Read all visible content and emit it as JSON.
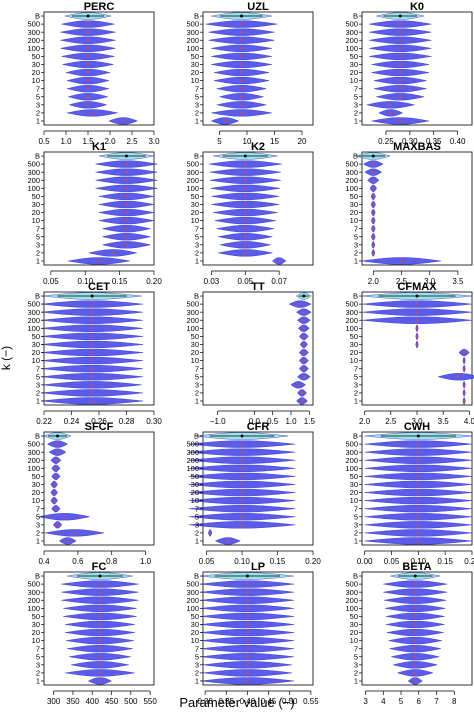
{
  "figure": {
    "ylabel": "k (−)",
    "xlabel": "Parameter value (−)",
    "k_labels": [
      "B",
      "500",
      "300",
      "200",
      "100",
      "50",
      "30",
      "20",
      "10",
      "7",
      "5",
      "3",
      "2",
      "1"
    ]
  },
  "colors": {
    "violin": "#4a4ae8",
    "bootstrap": "#8fe0e6",
    "median": "#e8413c",
    "axis": "#000000"
  },
  "chart_data": [
    {
      "type": "violin",
      "title": "PERC",
      "xlim": [
        0.5,
        3.0
      ],
      "ticks": [
        0.5,
        1.0,
        1.5,
        2.0,
        2.5,
        3.0
      ],
      "tick_labels": [
        "0.5",
        "1.0",
        "1.5",
        "2.0",
        "2.5",
        "3.0"
      ],
      "centers": [
        1.5,
        1.5,
        1.5,
        1.5,
        1.5,
        1.5,
        1.5,
        1.5,
        1.5,
        1.5,
        1.5,
        1.5,
        1.6,
        2.3
      ],
      "widths": [
        1.05,
        1.2,
        1.25,
        1.25,
        1.25,
        1.2,
        1.15,
        1.0,
        0.95,
        0.95,
        0.9,
        0.85,
        1.15,
        0.65
      ]
    },
    {
      "type": "violin",
      "title": "UZL",
      "xlim": [
        2,
        22
      ],
      "ticks": [
        5,
        10,
        15,
        20
      ],
      "tick_labels": [
        "5",
        "10",
        "15",
        "20"
      ],
      "centers": [
        9,
        9,
        9,
        9,
        9,
        9,
        9,
        9,
        9,
        9,
        9,
        9,
        9,
        6
      ],
      "widths": [
        11,
        13,
        12,
        12,
        11,
        11,
        11,
        10,
        10,
        9,
        8,
        9,
        11,
        5
      ]
    },
    {
      "type": "violin",
      "title": "K0",
      "xlim": [
        0.2,
        0.43
      ],
      "ticks": [
        0.25,
        0.3,
        0.35,
        0.4
      ],
      "tick_labels": [
        "0.25",
        "0.30",
        "0.35",
        "0.40"
      ],
      "centers": [
        0.28,
        0.28,
        0.28,
        0.28,
        0.28,
        0.28,
        0.28,
        0.28,
        0.28,
        0.28,
        0.28,
        0.26,
        0.26,
        0.28
      ],
      "widths": [
        0.1,
        0.13,
        0.13,
        0.13,
        0.13,
        0.13,
        0.12,
        0.12,
        0.11,
        0.11,
        0.1,
        0.1,
        0.05,
        0.12
      ]
    },
    {
      "type": "violin",
      "title": "K1",
      "xlim": [
        0.04,
        0.2
      ],
      "ticks": [
        0.05,
        0.1,
        0.15,
        0.2
      ],
      "tick_labels": [
        "0.05",
        "0.10",
        "0.15",
        "0.20"
      ],
      "centers": [
        0.16,
        0.16,
        0.16,
        0.16,
        0.16,
        0.16,
        0.16,
        0.16,
        0.16,
        0.16,
        0.16,
        0.16,
        0.14,
        0.12
      ],
      "widths": [
        0.08,
        0.09,
        0.09,
        0.09,
        0.09,
        0.08,
        0.08,
        0.08,
        0.08,
        0.07,
        0.07,
        0.07,
        0.07,
        0.09
      ]
    },
    {
      "type": "violin",
      "title": "K2",
      "xlim": [
        0.025,
        0.09
      ],
      "ticks": [
        0.03,
        0.05,
        0.07
      ],
      "tick_labels": [
        "0.03",
        "0.05",
        "0.07"
      ],
      "centers": [
        0.05,
        0.05,
        0.05,
        0.05,
        0.05,
        0.05,
        0.05,
        0.05,
        0.05,
        0.05,
        0.05,
        0.05,
        0.05,
        0.07
      ],
      "widths": [
        0.038,
        0.043,
        0.042,
        0.042,
        0.041,
        0.04,
        0.04,
        0.038,
        0.036,
        0.034,
        0.032,
        0.03,
        0.032,
        0.008
      ]
    },
    {
      "type": "violin",
      "title": "MAXBAS",
      "xlim": [
        1.8,
        3.75
      ],
      "ticks": [
        2.0,
        2.5,
        3.0,
        3.5
      ],
      "tick_labels": [
        "2.0",
        "2.5",
        "3.0",
        "3.5"
      ],
      "centers": [
        2.0,
        2.0,
        2.0,
        2.0,
        2.0,
        2.0,
        2.0,
        2.0,
        2.0,
        2.0,
        2.0,
        2.0,
        2.0,
        2.5
      ],
      "widths": [
        0.6,
        0.35,
        0.3,
        0.2,
        0.12,
        0.08,
        0.08,
        0.07,
        0.07,
        0.07,
        0.07,
        0.06,
        0.06,
        1.4
      ]
    },
    {
      "type": "violin",
      "title": "CET",
      "xlim": [
        0.22,
        0.3
      ],
      "ticks": [
        0.22,
        0.24,
        0.26,
        0.28,
        0.3
      ],
      "tick_labels": [
        "0.22",
        "0.24",
        "0.26",
        "0.28",
        "0.30"
      ],
      "centers": [
        0.255,
        0.255,
        0.255,
        0.255,
        0.255,
        0.255,
        0.255,
        0.255,
        0.255,
        0.255,
        0.255,
        0.255,
        0.255,
        0.255
      ],
      "widths": [
        0.072,
        0.074,
        0.074,
        0.074,
        0.074,
        0.074,
        0.074,
        0.074,
        0.074,
        0.074,
        0.074,
        0.072,
        0.074,
        0.074
      ]
    },
    {
      "type": "violin",
      "title": "TT",
      "xlim": [
        -1.4,
        1.6
      ],
      "ticks": [
        -1.0,
        0.0,
        0.5,
        1.0,
        1.5
      ],
      "tick_labels": [
        "−1.0",
        "0.0",
        "0.5",
        "1.0",
        "1.5"
      ],
      "centers": [
        1.35,
        1.25,
        1.35,
        1.35,
        1.35,
        1.35,
        1.35,
        1.35,
        1.35,
        1.35,
        1.35,
        1.2,
        1.3,
        1.3
      ],
      "widths": [
        0.4,
        0.6,
        0.4,
        0.35,
        0.3,
        0.25,
        0.2,
        0.25,
        0.25,
        0.25,
        0.35,
        0.4,
        0.25,
        0.3
      ]
    },
    {
      "type": "violin",
      "title": "CFMAX",
      "xlim": [
        1.95,
        4.05
      ],
      "ticks": [
        2.0,
        2.5,
        3.0,
        3.5,
        4.0
      ],
      "tick_labels": [
        "2.0",
        "2.5",
        "3.0",
        "3.5",
        "4.0"
      ],
      "centers": [
        3.0,
        3.0,
        3.0,
        3.0,
        3.0,
        3.0,
        3.0,
        3.9,
        3.9,
        3.9,
        3.8,
        3.9,
        3.9,
        3.9
      ],
      "widths": [
        2.1,
        2.1,
        2.1,
        2.1,
        0.05,
        0.05,
        0.05,
        0.2,
        0.05,
        0.05,
        0.8,
        0.05,
        0.05,
        0.05
      ]
    },
    {
      "type": "violin",
      "title": "SFCF",
      "xlim": [
        0.4,
        1.05
      ],
      "ticks": [
        0.4,
        0.6,
        0.8,
        1.0
      ],
      "tick_labels": [
        "0.4",
        "0.6",
        "0.8",
        "1.0"
      ],
      "centers": [
        0.48,
        0.48,
        0.48,
        0.47,
        0.47,
        0.47,
        0.46,
        0.46,
        0.46,
        0.47,
        0.52,
        0.48,
        0.58,
        0.54
      ],
      "widths": [
        0.16,
        0.12,
        0.1,
        0.06,
        0.05,
        0.05,
        0.04,
        0.04,
        0.04,
        0.05,
        0.3,
        0.05,
        0.35,
        0.1
      ]
    },
    {
      "type": "violin",
      "title": "CFR",
      "xlim": [
        0.045,
        0.2
      ],
      "ticks": [
        0.05,
        0.1,
        0.15,
        0.2
      ],
      "tick_labels": [
        "0.05",
        "0.10",
        "0.15",
        "0.20"
      ],
      "centers": [
        0.1,
        0.1,
        0.1,
        0.1,
        0.1,
        0.1,
        0.1,
        0.1,
        0.1,
        0.1,
        0.1,
        0.1,
        0.055,
        0.08
      ],
      "widths": [
        0.13,
        0.15,
        0.15,
        0.15,
        0.15,
        0.15,
        0.15,
        0.15,
        0.15,
        0.15,
        0.15,
        0.15,
        0.005,
        0.035
      ]
    },
    {
      "type": "violin",
      "title": "CWH",
      "xlim": [
        -0.005,
        0.2
      ],
      "ticks": [
        0.0,
        0.05,
        0.1,
        0.15,
        0.2
      ],
      "tick_labels": [
        "0.00",
        "0.05",
        "0.10",
        "0.15",
        "0.20"
      ],
      "centers": [
        0.1,
        0.1,
        0.1,
        0.1,
        0.1,
        0.1,
        0.1,
        0.1,
        0.1,
        0.1,
        0.1,
        0.1,
        0.1,
        0.1
      ],
      "widths": [
        0.2,
        0.2,
        0.2,
        0.2,
        0.2,
        0.2,
        0.2,
        0.2,
        0.2,
        0.2,
        0.2,
        0.2,
        0.2,
        0.2
      ]
    },
    {
      "type": "violin",
      "title": "FC",
      "xlim": [
        275,
        560
      ],
      "ticks": [
        300,
        350,
        400,
        450,
        500,
        550
      ],
      "tick_labels": [
        "300",
        "350",
        "400",
        "450",
        "500",
        "550"
      ],
      "centers": [
        420,
        420,
        420,
        420,
        420,
        420,
        420,
        420,
        420,
        420,
        420,
        420,
        420,
        420
      ],
      "widths": [
        170,
        200,
        200,
        200,
        190,
        190,
        180,
        180,
        175,
        170,
        160,
        150,
        180,
        60
      ]
    },
    {
      "type": "violin",
      "title": "LP",
      "xlim": [
        0.295,
        0.555
      ],
      "ticks": [
        0.3,
        0.35,
        0.4,
        0.45,
        0.5,
        0.55
      ],
      "tick_labels": [
        "0.30",
        "0.35",
        "0.40",
        "0.45",
        "0.50",
        "0.55"
      ],
      "centers": [
        0.4,
        0.4,
        0.4,
        0.4,
        0.4,
        0.4,
        0.4,
        0.4,
        0.4,
        0.4,
        0.4,
        0.4,
        0.4,
        0.4
      ],
      "widths": [
        0.22,
        0.22,
        0.22,
        0.22,
        0.22,
        0.22,
        0.22,
        0.22,
        0.22,
        0.22,
        0.22,
        0.21,
        0.21,
        0.22
      ]
    },
    {
      "type": "violin",
      "title": "BETA",
      "xlim": [
        2.8,
        9.0
      ],
      "ticks": [
        3,
        4,
        5,
        6,
        7,
        8
      ],
      "tick_labels": [
        "3",
        "4",
        "5",
        "6",
        "7",
        "8"
      ],
      "centers": [
        5.8,
        5.8,
        5.8,
        5.8,
        5.8,
        5.8,
        5.8,
        5.8,
        5.8,
        5.8,
        5.8,
        5.8,
        5.8,
        5.8
      ],
      "widths": [
        2.8,
        3.6,
        3.6,
        3.5,
        3.4,
        3.3,
        3.3,
        3.2,
        3.0,
        2.9,
        2.7,
        2.5,
        2.0,
        0.8
      ]
    }
  ]
}
